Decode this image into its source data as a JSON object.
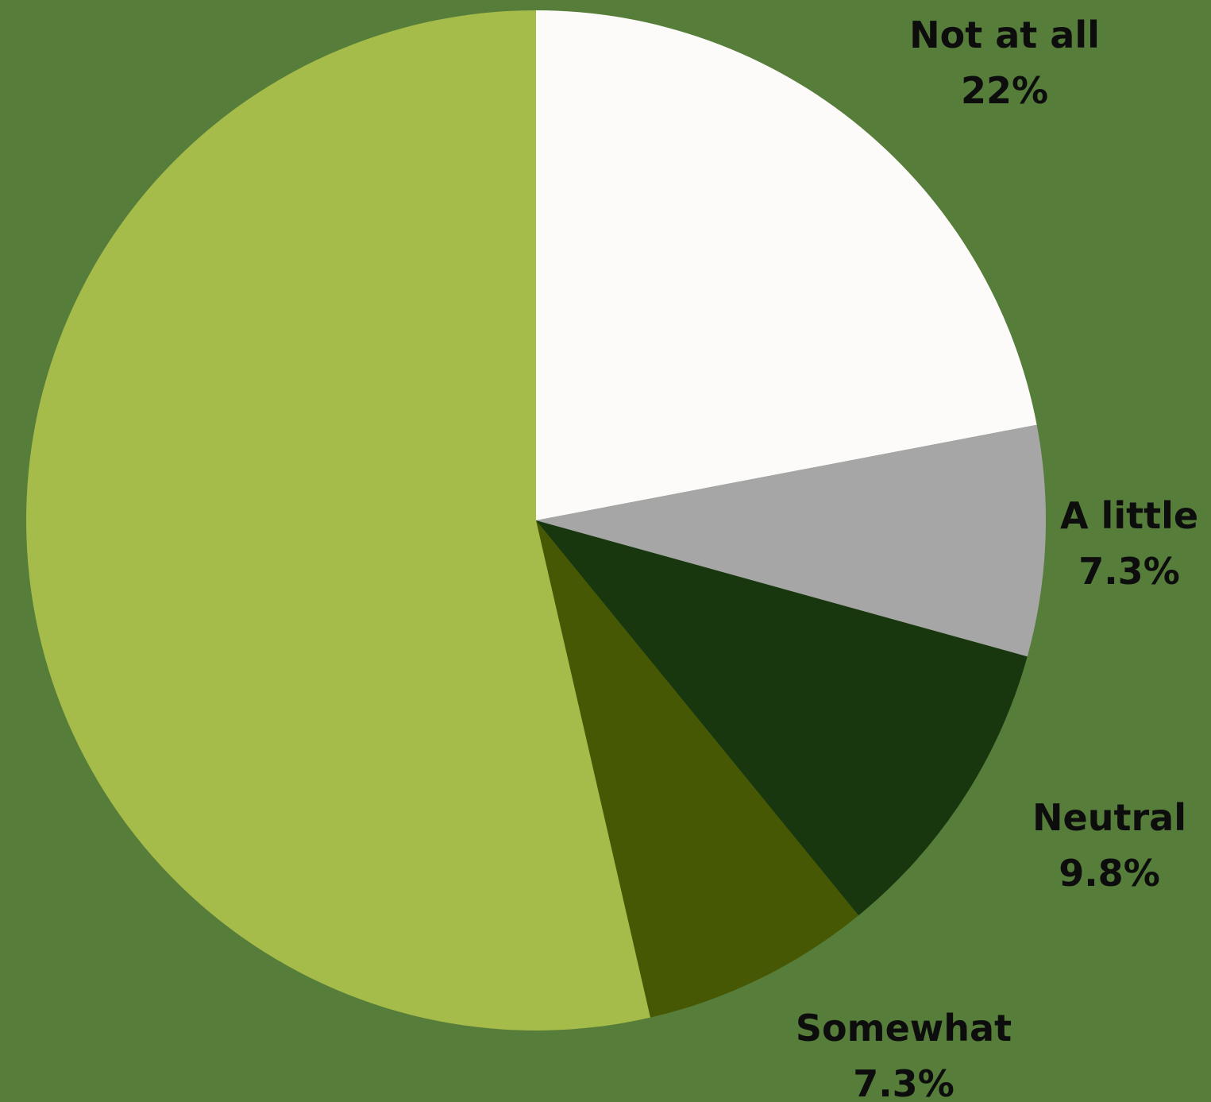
{
  "chart_data": {
    "type": "pie",
    "title": "",
    "start_angle_deg": 0,
    "direction": "clockwise",
    "background_color": "#567d3a",
    "label_color": "#0d0d0d",
    "slices": [
      {
        "label": "Not at all",
        "value": 22,
        "display": "22%",
        "color": "#fdfafa"
      },
      {
        "label": "A little",
        "value": 7.3,
        "display": "7.3%",
        "color": "#a6a6a6"
      },
      {
        "label": "Neutral",
        "value": 9.8,
        "display": "9.8%",
        "color": "#19370f"
      },
      {
        "label": "Somewhat",
        "value": 7.3,
        "display": "7.3%",
        "color": "#465803"
      },
      {
        "label": "",
        "value": 53.6,
        "display": "",
        "color": "#a5bc4b"
      }
    ]
  }
}
